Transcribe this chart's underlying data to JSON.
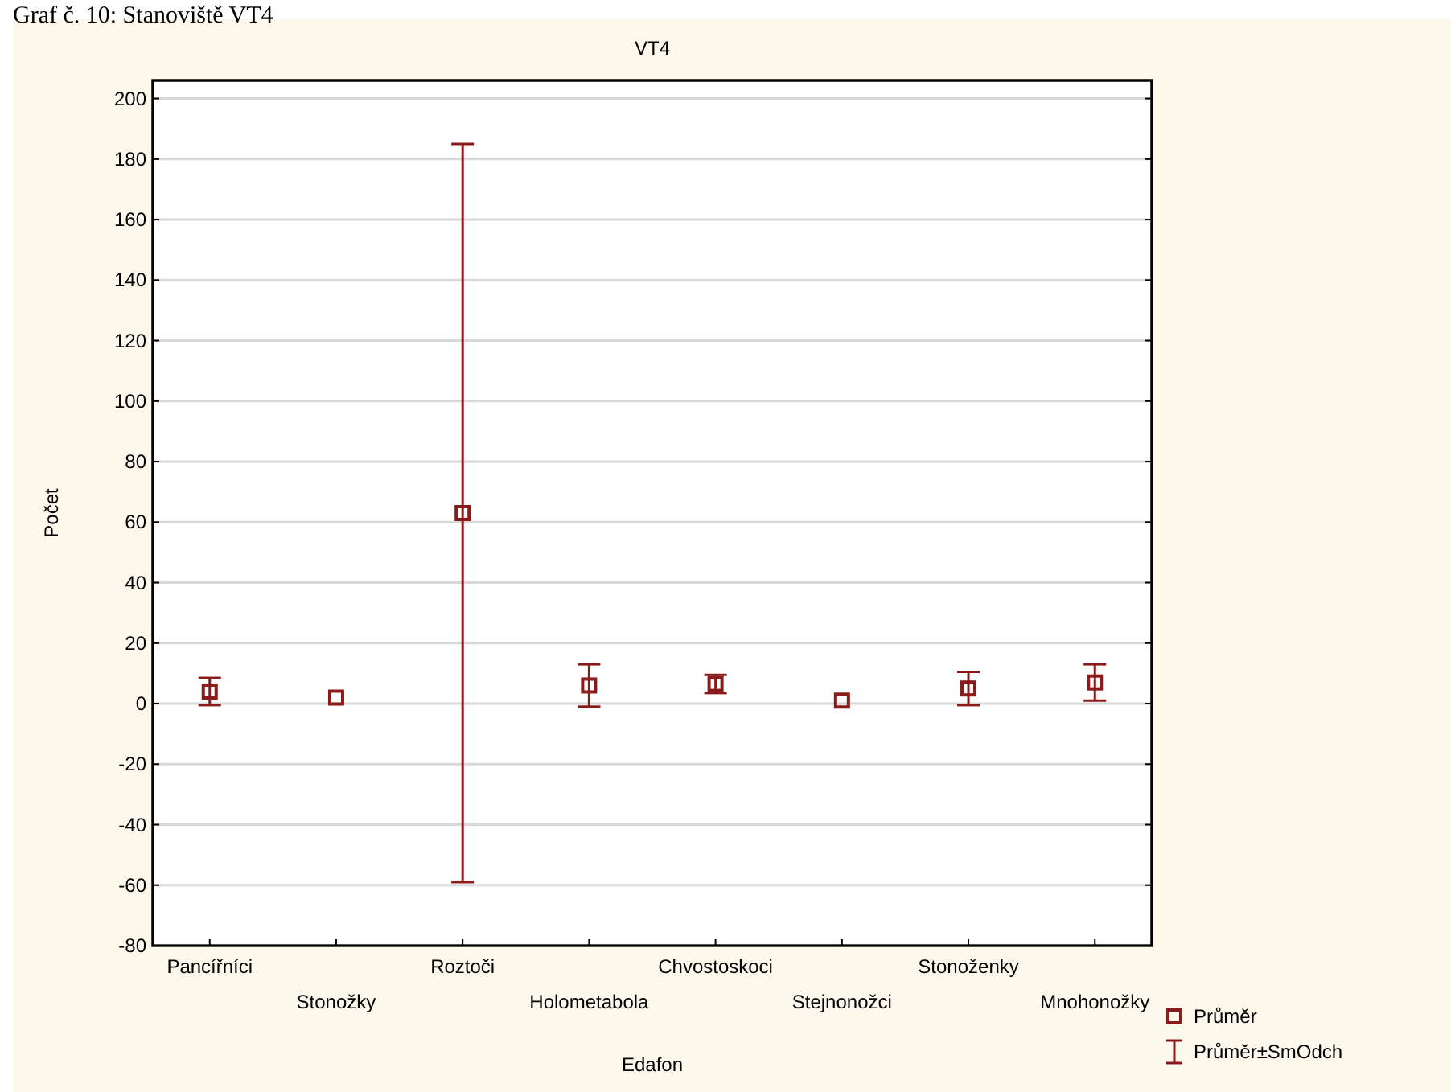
{
  "chart_data": {
    "type": "scatter",
    "title": "VT4",
    "xlabel": "Edafon",
    "ylabel": "Počet",
    "annotations": [
      "Graf č. 10: Stanoviště VT4",
      "Průměr±SmOdch"
    ],
    "categories": [
      "Pancířníci",
      "Stonožky",
      "Roztoči",
      "Holometabola",
      "Chvostoskoci",
      "Stejnonožci",
      "Stonoženky",
      "Mnohonožky"
    ],
    "series": [
      {
        "name": "Průměr",
        "color": "#8b1a1a",
        "values": [
          4,
          2,
          63,
          6,
          6.5,
          1,
          5,
          7
        ],
        "errors": [
          4.5,
          null,
          122,
          7,
          3,
          null,
          5.5,
          6
        ]
      }
    ],
    "ylim": [
      -80,
      206
    ],
    "yticks": [
      -80,
      -60,
      -40,
      -20,
      0,
      20,
      40,
      60,
      80,
      100,
      120,
      140,
      160,
      180,
      200
    ],
    "grid": "y",
    "marker": "square",
    "legend": "bottom right"
  }
}
